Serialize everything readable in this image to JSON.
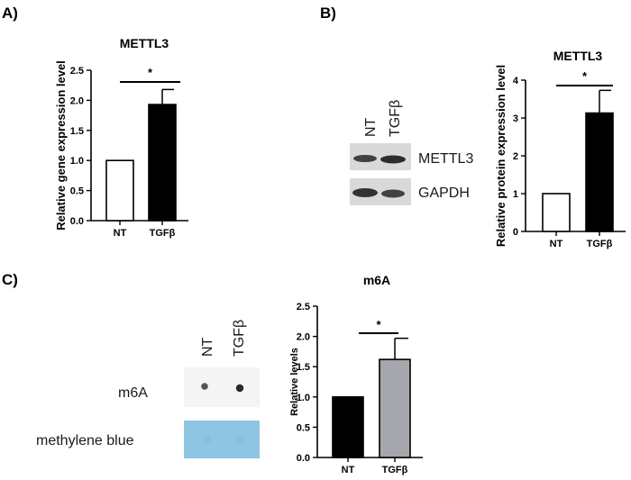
{
  "panels": {
    "A": {
      "label": "A)"
    },
    "B": {
      "label": "B)"
    },
    "C": {
      "label": "C)"
    }
  },
  "blot_b": {
    "lanes": [
      "NT",
      "TGFβ"
    ],
    "rows": [
      "METTL3",
      "GAPDH"
    ]
  },
  "dot_blot_c": {
    "lanes": [
      "NT",
      "TGFβ"
    ],
    "rows": [
      "m6A",
      "methylene blue"
    ]
  },
  "chart_data": [
    {
      "id": "A",
      "type": "bar",
      "title": "METTL3",
      "ylabel": "Relative gene expression level",
      "categories": [
        "NT",
        "TGFβ"
      ],
      "values": [
        1.0,
        1.93
      ],
      "errors": [
        0,
        0.25
      ],
      "ylim": [
        0,
        2.5
      ],
      "yticks": [
        "0.0",
        "0.5",
        "1.0",
        "1.5",
        "2.0",
        "2.5"
      ],
      "significance": "*",
      "colors": [
        "#ffffff",
        "#000000"
      ]
    },
    {
      "id": "B",
      "type": "bar",
      "title": "METTL3",
      "ylabel": "Relative protein expression level",
      "categories": [
        "NT",
        "TGFβ"
      ],
      "values": [
        1.0,
        3.13
      ],
      "errors": [
        0,
        0.6
      ],
      "ylim": [
        0,
        4
      ],
      "yticks": [
        "0",
        "1",
        "2",
        "3",
        "4"
      ],
      "significance": "*",
      "colors": [
        "#ffffff",
        "#000000"
      ]
    },
    {
      "id": "C",
      "type": "bar",
      "title": "m6A",
      "ylabel": "Relative levels",
      "categories": [
        "NT",
        "TGFβ"
      ],
      "values": [
        1.0,
        1.62
      ],
      "errors": [
        0,
        0.35
      ],
      "ylim": [
        0,
        2.5
      ],
      "yticks": [
        "0.0",
        "0.5",
        "1.0",
        "1.5",
        "2.0",
        "2.5"
      ],
      "significance": "*",
      "colors": [
        "#000000",
        "#a6a6ad"
      ]
    }
  ]
}
